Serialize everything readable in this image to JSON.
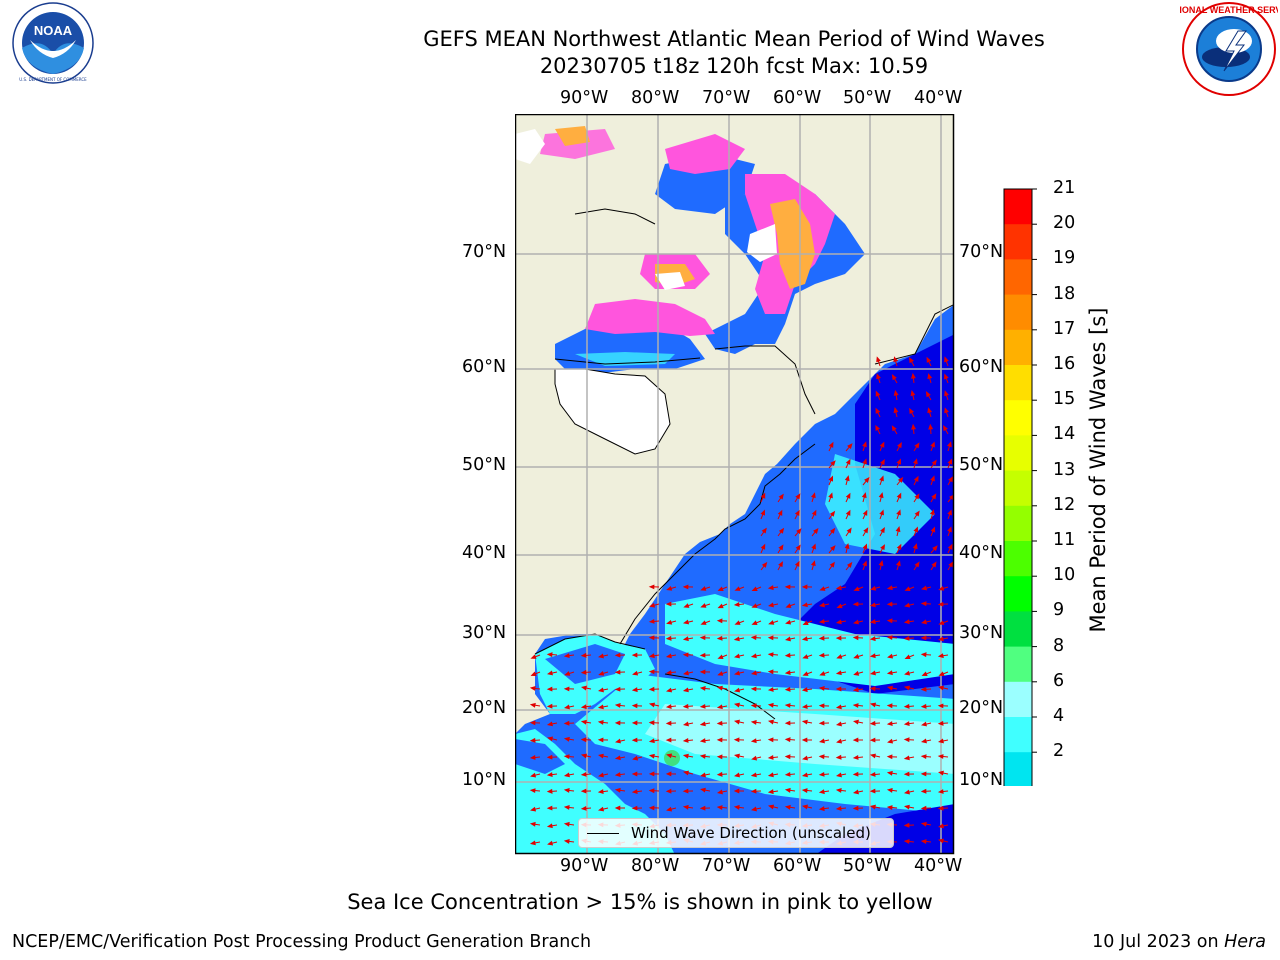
{
  "title": {
    "line1": "GEFS MEAN Northwest Atlantic Mean Period of Wind Waves",
    "line2": "20230705 t18z 120h fcst   Max: 10.59"
  },
  "logos": {
    "left": {
      "name": "noaa-logo",
      "text": "NOAA",
      "ring_text": "NATIONAL OCEANIC AND ATMOSPHERIC ADMINISTRATION · U.S. DEPARTMENT OF COMMERCE"
    },
    "right": {
      "name": "nws-logo",
      "ring_text": "NATIONAL WEATHER SERVICE"
    }
  },
  "map": {
    "lon_labels": [
      "90°W",
      "80°W",
      "70°W",
      "60°W",
      "50°W",
      "40°W"
    ],
    "lat_labels": [
      "70°N",
      "60°N",
      "50°N",
      "40°N",
      "30°N",
      "20°N",
      "10°N"
    ],
    "legend_label": "Wind Wave Direction (unscaled)",
    "colors": {
      "land": "#efefdc",
      "ocean_2": "#0000e6",
      "ocean_low": "#1f6bff",
      "ocean_4": "#00e5f0",
      "ocean_6": "#40ffff",
      "ocean_8": "#9bffff",
      "ocean_green": "#40e080",
      "arrow": "#e00000",
      "ice_pink": "#ff55dd",
      "ice_orange": "#ffae40",
      "grid": "#b0b0b0"
    }
  },
  "colorbar": {
    "title": "Mean Period of Wind Waves [s]",
    "ticks": [
      "21",
      "20",
      "19",
      "18",
      "17",
      "16",
      "15",
      "14",
      "13",
      "12",
      "11",
      "10",
      "9",
      "8",
      "6",
      "4",
      "2"
    ],
    "segments": [
      "#ff0000",
      "#ff3300",
      "#ff6600",
      "#ff8c00",
      "#ffb000",
      "#ffde00",
      "#ffff00",
      "#e7ff00",
      "#c5ff00",
      "#94ff00",
      "#4cff00",
      "#00ff00",
      "#00e040",
      "#50ff80",
      "#9bffff",
      "#40ffff",
      "#00e5f0",
      "#1f6bff"
    ],
    "under_color": "#0000e6"
  },
  "note": "Sea Ice Concentration > 15% is shown in pink to yellow",
  "footer": {
    "left": "NCEP/EMC/Verification Post Processing Product Generation Branch",
    "right_prefix": "10 Jul 2023 on ",
    "right_italic": "Hera"
  }
}
